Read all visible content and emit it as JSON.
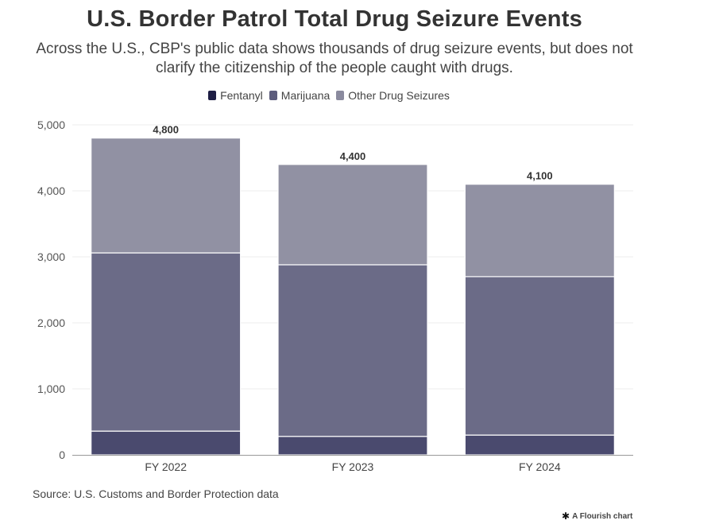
{
  "title": "U.S. Border Patrol Total Drug Seizure Events",
  "subtitle": "Across the U.S., CBP's public data shows thousands of drug seizure events, but does not clarify the citizenship of the people caught with drugs.",
  "source": "Source: U.S. Customs and Border Protection data",
  "credit": "A Flourish chart",
  "credit_icon": "asterisk-icon",
  "chart_data": {
    "type": "bar",
    "stacked": true,
    "categories": [
      "FY 2022",
      "FY 2023",
      "FY 2024"
    ],
    "series": [
      {
        "name": "Fentanyl",
        "color": "#4a4a6e",
        "legend_color": "#1e1e44",
        "values": [
          360,
          280,
          300
        ]
      },
      {
        "name": "Marijuana",
        "color": "#6b6b87",
        "legend_color": "#5c5c7c",
        "values": [
          2700,
          2600,
          2400
        ]
      },
      {
        "name": "Other Drug Seizures",
        "color": "#9191a3",
        "legend_color": "#8a8a9e",
        "values": [
          1740,
          1520,
          1400
        ]
      }
    ],
    "totals": [
      4800,
      4400,
      4100
    ],
    "total_labels": [
      "4,800",
      "4,400",
      "4,100"
    ],
    "ylim": [
      0,
      5000
    ],
    "yticks": [
      0,
      1000,
      2000,
      3000,
      4000,
      5000
    ],
    "ytick_labels": [
      "0",
      "1,000",
      "2,000",
      "3,000",
      "4,000",
      "5,000"
    ],
    "grid": true,
    "legend_position": "top-center"
  }
}
